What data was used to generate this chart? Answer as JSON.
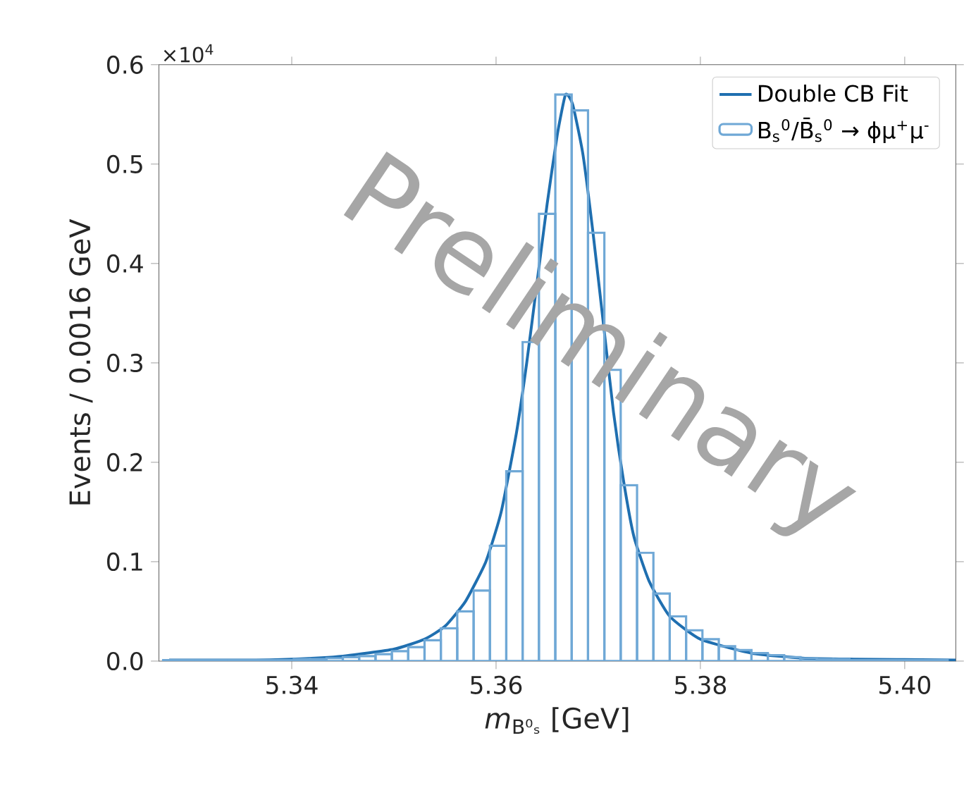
{
  "chart_data": {
    "type": "histogram",
    "xlabel": "*m*$_{B⁰ₛ}$ [GeV]",
    "ylabel": "Events / 0.0016 GeV",
    "annotations": [
      "×10$^{4}$",
      "Preliminary"
    ],
    "xlim": [
      5.327,
      5.405
    ],
    "ylim": [
      0,
      0.6
    ],
    "xticks": [
      {
        "value": 5.34,
        "label": "5.34"
      },
      {
        "value": 5.36,
        "label": "5.36"
      },
      {
        "value": 5.38,
        "label": "5.38"
      },
      {
        "value": 5.4,
        "label": "5.40"
      }
    ],
    "yticks": [
      {
        "value": 0,
        "label": "0.0"
      },
      {
        "value": 0.1,
        "label": "0.1"
      },
      {
        "value": 0.2,
        "label": "0.2"
      },
      {
        "value": 0.3,
        "label": "0.3"
      },
      {
        "value": 0.4,
        "label": "0.4"
      },
      {
        "value": 0.5,
        "label": "0.5"
      },
      {
        "value": 0.6,
        "label": "0.6"
      }
    ],
    "legend": "top right",
    "series": [
      {
        "type": "line",
        "name": "Double CB Fit",
        "color": "#1f6fb0",
        "x": [
          5.328,
          5.335,
          5.34,
          5.345,
          5.35,
          5.353,
          5.355,
          5.357,
          5.359,
          5.3605,
          5.362,
          5.363,
          5.364,
          5.365,
          5.366,
          5.3668,
          5.3675,
          5.3685,
          5.3695,
          5.3705,
          5.3715,
          5.3725,
          5.3735,
          5.375,
          5.377,
          5.38,
          5.385,
          5.39,
          5.395,
          5.405
        ],
        "values": [
          0.001,
          0.001,
          0.002,
          0.005,
          0.012,
          0.022,
          0.035,
          0.06,
          0.1,
          0.15,
          0.23,
          0.3,
          0.38,
          0.46,
          0.53,
          0.57,
          0.56,
          0.51,
          0.43,
          0.34,
          0.25,
          0.18,
          0.125,
          0.08,
          0.045,
          0.022,
          0.008,
          0.003,
          0.002,
          0.001
        ]
      },
      {
        "type": "histogram",
        "name": "B$_{s}$$^{0}$/B̄$_{s}$$^{0}$ → ϕμ$^{+}$μ$^{-}$",
        "color": "#6fa8d6",
        "bins": [
          5.3274,
          5.329,
          5.3306,
          5.3322,
          5.3338,
          5.3354,
          5.337,
          5.3386,
          5.3402,
          5.3418,
          5.3434,
          5.345,
          5.3466,
          5.3482,
          5.3498,
          5.3514,
          5.353,
          5.3546,
          5.3562,
          5.3578,
          5.3594,
          5.361,
          5.3626,
          5.3642,
          5.3658,
          5.3674,
          5.369,
          5.3706,
          5.3722,
          5.3738,
          5.3754,
          5.377,
          5.3786,
          5.3802,
          5.3818,
          5.3834,
          5.385,
          5.3866,
          5.3882,
          5.3898,
          5.3914,
          5.393,
          5.3946,
          5.3962,
          5.3978,
          5.3994,
          5.401,
          5.4026,
          5.4042
        ],
        "values": [
          0.001,
          0.001,
          0.001,
          0.001,
          0.001,
          0.001,
          0.001,
          0.001,
          0.002,
          0.002,
          0.003,
          0.004,
          0.005,
          0.007,
          0.01,
          0.014,
          0.021,
          0.033,
          0.05,
          0.071,
          0.116,
          0.191,
          0.321,
          0.45,
          0.57,
          0.554,
          0.431,
          0.293,
          0.177,
          0.109,
          0.068,
          0.045,
          0.031,
          0.022,
          0.015,
          0.011,
          0.008,
          0.006,
          0.004,
          0.003,
          0.002,
          0.002,
          0.001,
          0.001,
          0.001,
          0.001,
          0.001,
          0.001
        ]
      }
    ]
  }
}
